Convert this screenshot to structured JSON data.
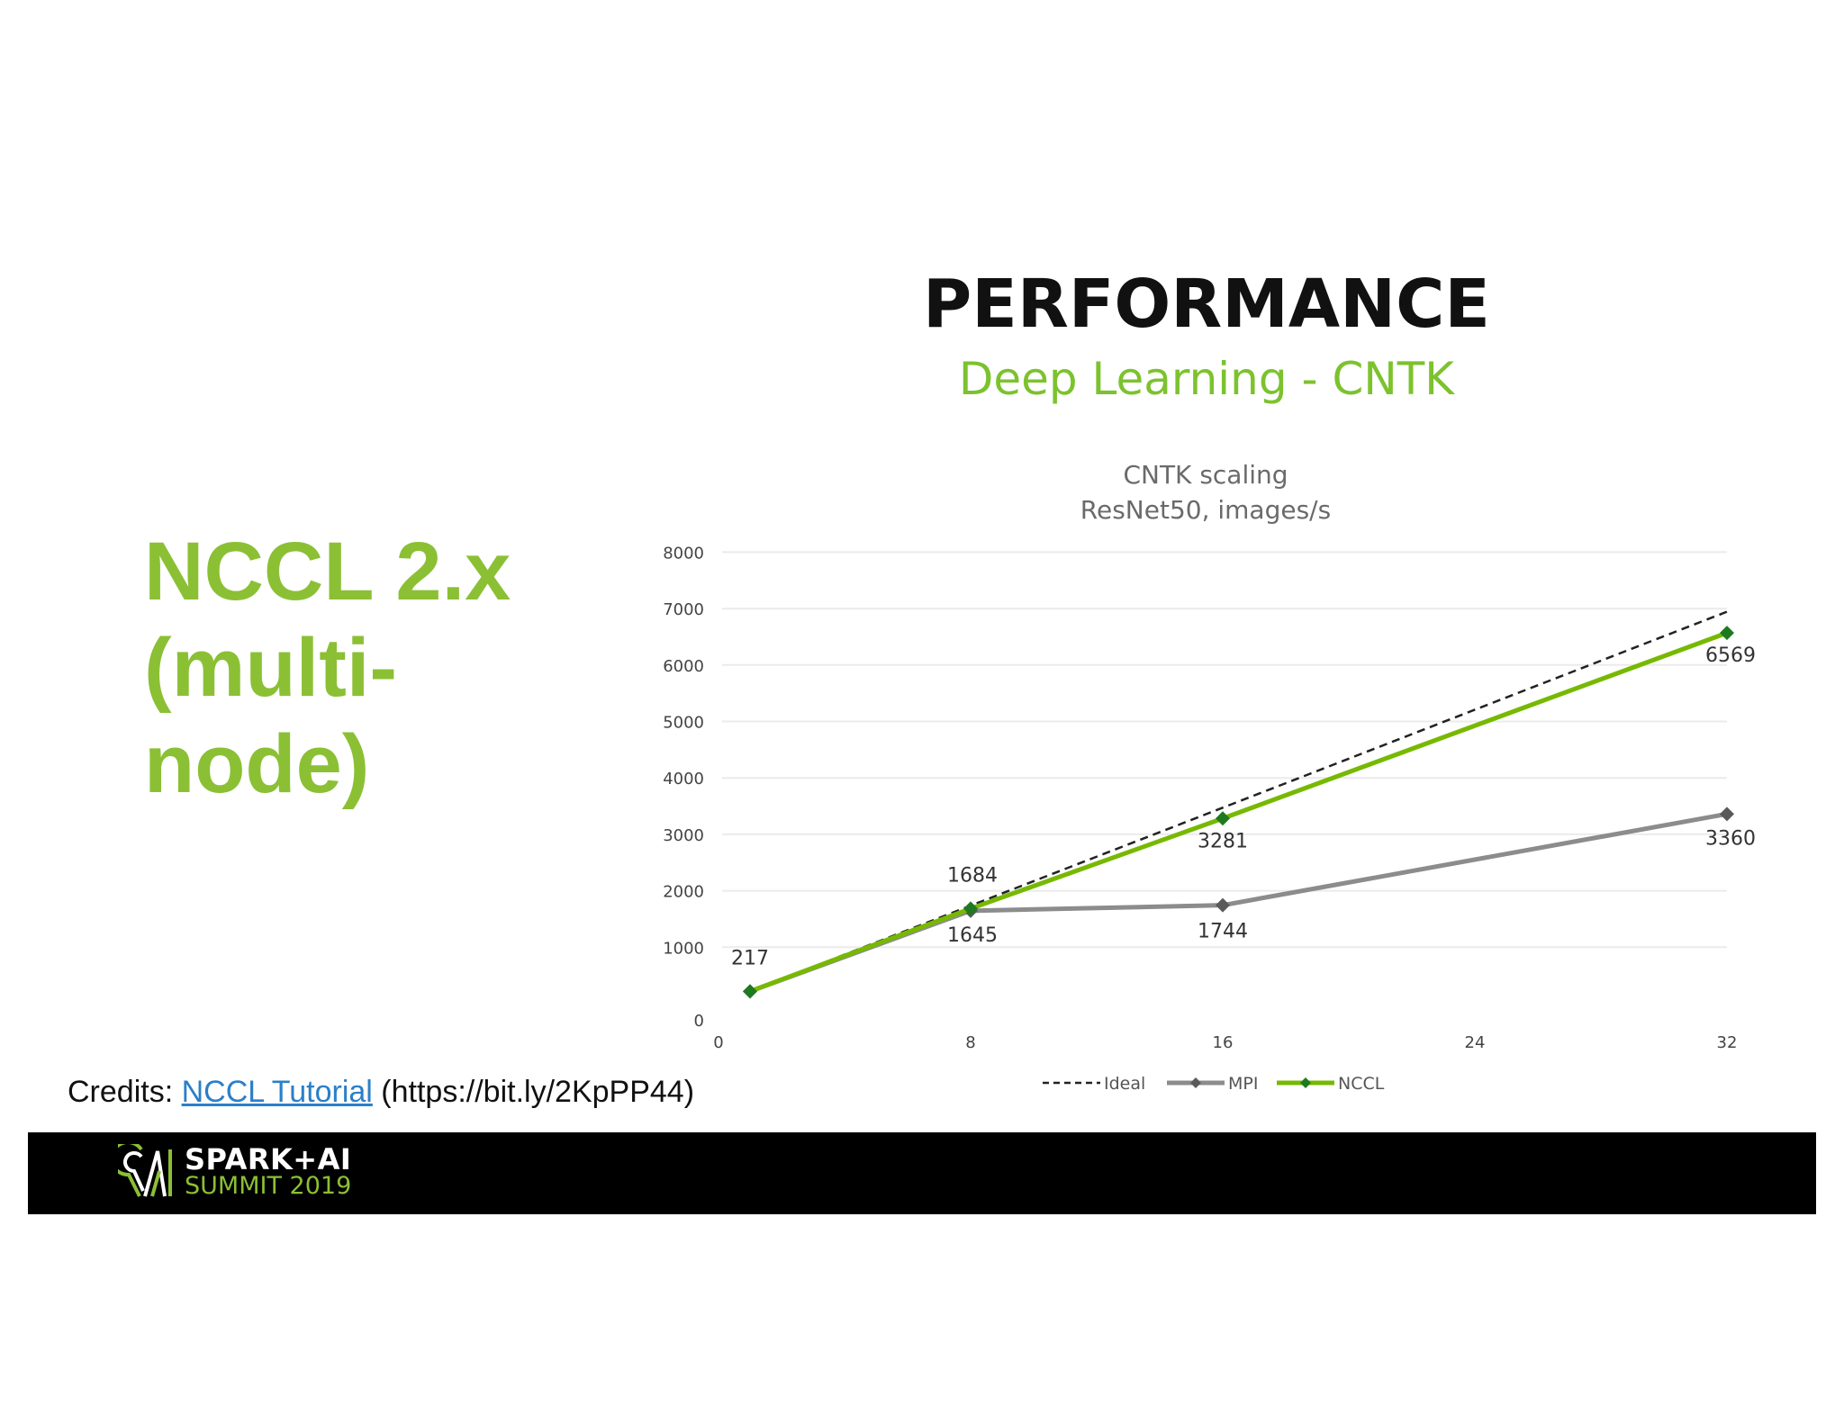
{
  "slide": {
    "heading_lines": [
      "NCCL 2.x",
      "(multi-",
      "node)"
    ],
    "chart_header": {
      "title": "PERFORMANCE",
      "subtitle": "Deep Learning - CNTK"
    },
    "credits": {
      "prefix": "Credits: ",
      "link_label": "NCCL Tutorial",
      "suffix": " (https://bit.ly/2KpPP44)"
    },
    "footer": {
      "logo_line1": "SPARK+AI",
      "logo_line2": "SUMMIT 2019"
    },
    "colors": {
      "accent_green": "#8bc034",
      "nccl_line": "#76b900",
      "nccl_marker": "#1f7a1f",
      "mpi_line": "#8c8c8c",
      "mpi_marker": "#5a5a5a",
      "ideal_line": "#222222",
      "link_blue": "#2a7fc9",
      "banner_bg": "#000000"
    }
  },
  "chart_data": {
    "type": "line",
    "title": "CNTK scaling",
    "subtitle": "ResNet50, images/s",
    "xlabel": "",
    "ylabel": "",
    "x": [
      1,
      8,
      16,
      32
    ],
    "xticks": [
      "0",
      "8",
      "16",
      "24",
      "32"
    ],
    "xlim": [
      0,
      32
    ],
    "yticks": [
      "0",
      "1000",
      "2000",
      "3000",
      "4000",
      "5000",
      "6000",
      "7000",
      "8000"
    ],
    "ylim": [
      0,
      8000
    ],
    "grid": true,
    "legend_position": "bottom",
    "series": [
      {
        "name": "Ideal",
        "style": "dashed",
        "values": [
          217,
          1736,
          3472,
          6944
        ],
        "labels": []
      },
      {
        "name": "MPI",
        "style": "solid",
        "marker": "diamond",
        "values": [
          217,
          1645,
          1744,
          3360
        ],
        "labels": [
          "",
          "1645",
          "1744",
          "3360"
        ]
      },
      {
        "name": "NCCL",
        "style": "solid",
        "marker": "diamond",
        "values": [
          217,
          1684,
          3281,
          6569
        ],
        "labels": [
          "217",
          "1684",
          "3281",
          "6569"
        ]
      }
    ]
  }
}
